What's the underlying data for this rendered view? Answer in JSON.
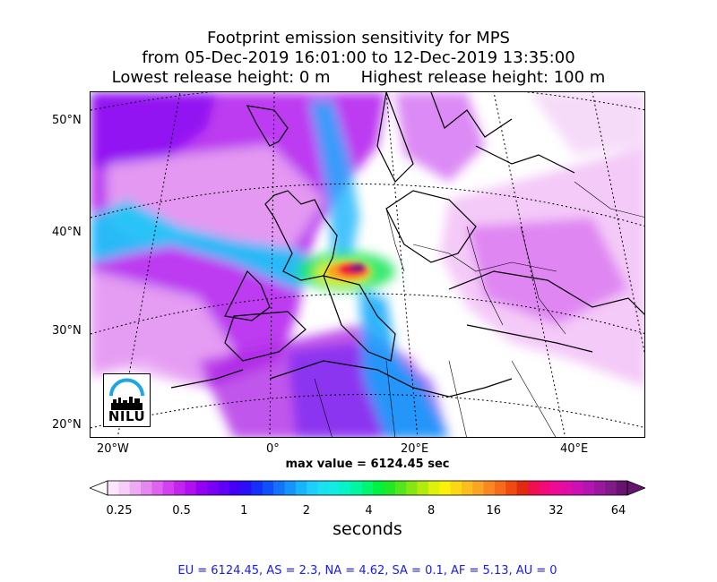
{
  "title": {
    "line1": "Footprint emission sensitivity for MPS",
    "line2": "from 05-Dec-2019 16:01:00 to 12-Dec-2019 13:35:00",
    "lowest_release": "Lowest release height: 0 m",
    "highest_release": "Highest release height: 100 m"
  },
  "axes": {
    "lat_labels": [
      "50°N",
      "40°N",
      "30°N",
      "20°N"
    ],
    "lon_labels": [
      "20°W",
      "0°",
      "20°E",
      "40°E"
    ]
  },
  "max_value": "max value = 6124.45 sec",
  "logo": {
    "text": "NILU"
  },
  "colorbar": {
    "ticks": [
      "0.25",
      "0.5",
      "1",
      "2",
      "4",
      "8",
      "16",
      "32",
      "64"
    ],
    "label": "seconds",
    "colors": [
      "#fbe6fb",
      "#f6ccf8",
      "#eeaaf5",
      "#e687f2",
      "#de63ef",
      "#d341ee",
      "#c425ee",
      "#b010f0",
      "#9400f2",
      "#7a00f4",
      "#6000f6",
      "#4400f6",
      "#2a10f8",
      "#1430fa",
      "#1050fb",
      "#1272fc",
      "#1594fd",
      "#18b4fe",
      "#1ccffc",
      "#18e1f0",
      "#10ede0",
      "#06f3c4",
      "#00f6a0",
      "#00f570",
      "#00f040",
      "#22e824",
      "#55e51c",
      "#85e614",
      "#b2ec0e",
      "#dcf20a",
      "#faf00a",
      "#fcd814",
      "#fcbe1e",
      "#fca424",
      "#fa8820",
      "#f56c1a",
      "#ee4a12",
      "#e22a10",
      "#f01050",
      "#f20a7a",
      "#ee0a94",
      "#e00ca8",
      "#cc10b4",
      "#b414b0",
      "#9a189c",
      "#801a86",
      "#661470"
    ]
  },
  "stats": "EU = 6124.45,  AS = 2.3,  NA = 4.62,  SA = 0.1,  AF = 5.13,  AU = 0"
}
